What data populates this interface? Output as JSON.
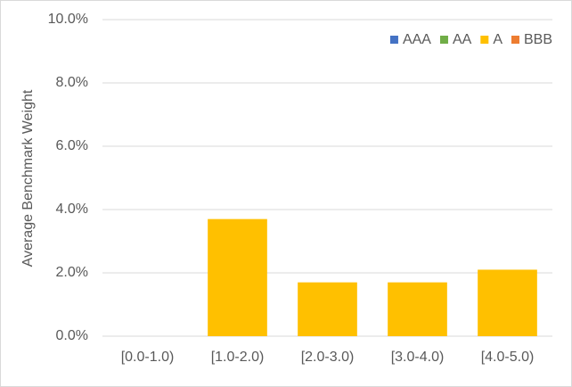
{
  "chart_data": {
    "type": "stacked_bar",
    "y_label": "Average Benchmark Weight",
    "categories": [
      "[0.0-1.0)",
      "[1.0-2.0)",
      "[2.0-3.0)",
      "[3.0-4.0)",
      "[4.0-5.0)"
    ],
    "series": [
      {
        "name": "AAA",
        "color": "#4472c4",
        "values": [
          0,
          0,
          0,
          0,
          0
        ]
      },
      {
        "name": "AA",
        "color": "#70ad47",
        "values": [
          0,
          0,
          0,
          0,
          0
        ]
      },
      {
        "name": "A",
        "color": "#ffc000",
        "values": [
          0,
          3.7,
          1.7,
          1.7,
          2.1
        ]
      },
      {
        "name": "BBB",
        "color": "#ed7d31",
        "values": [
          0,
          0,
          0,
          0,
          0
        ]
      }
    ],
    "ylim": [
      0,
      10
    ],
    "yticks": [
      {
        "value": 0,
        "label": "0.0%"
      },
      {
        "value": 2,
        "label": "2.0%"
      },
      {
        "value": 4,
        "label": "4.0%"
      },
      {
        "value": 6,
        "label": "6.0%"
      },
      {
        "value": 8,
        "label": "8.0%"
      },
      {
        "value": 10,
        "label": "10.0%"
      }
    ],
    "grid": true,
    "legend": "top-right"
  }
}
